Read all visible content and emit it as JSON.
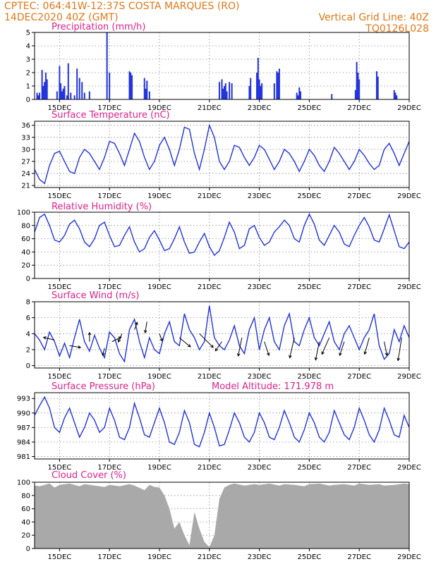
{
  "header": {
    "station": "CPTEC:  064:41W-12:37S  COSTA MARQUES (RO)",
    "run": "14DEC2020 40Z (GMT)",
    "grid_note": "Vertical Grid Line: 40Z",
    "code": "TQ0126L028"
  },
  "colors": {
    "header": "#e07818",
    "panel_title": "#e0208a",
    "series": "#2233dd",
    "cloud": "#a9a9a9",
    "wind_arrow": "#000000"
  },
  "x_axis": {
    "tick_labels": [
      "15DEC",
      "17DEC",
      "19DEC",
      "21DEC",
      "23DEC",
      "25DEC",
      "27DEC",
      "29DEC"
    ],
    "tick_days": [
      15,
      17,
      19,
      21,
      23,
      25,
      27,
      29
    ],
    "range": [
      14.0,
      29.0
    ]
  },
  "chart_data": [
    {
      "id": "precip",
      "type": "bar",
      "title": "Precipitation (mm/h)",
      "ylim": [
        0,
        5
      ],
      "yticks": [
        0,
        1,
        2,
        3,
        4,
        5
      ],
      "x": [
        14.1,
        14.15,
        14.2,
        14.3,
        14.35,
        14.4,
        14.45,
        14.5,
        14.9,
        15.0,
        15.05,
        15.1,
        15.15,
        15.2,
        15.3,
        15.35,
        15.45,
        15.6,
        15.7,
        15.8,
        15.9,
        16.0,
        16.2,
        16.9,
        17.0,
        17.8,
        17.85,
        17.9,
        18.4,
        18.45,
        18.5,
        18.6,
        21.4,
        21.5,
        21.55,
        21.6,
        21.65,
        21.7,
        21.8,
        21.9,
        22.6,
        22.65,
        22.9,
        22.95,
        23.0,
        23.05,
        23.1,
        23.6,
        23.7,
        23.75,
        23.8,
        24.5,
        24.55,
        24.6,
        24.65,
        25.9,
        26.85,
        26.9,
        26.95,
        27.0,
        27.7,
        27.75,
        28.4,
        28.45,
        28.5
      ],
      "values": [
        0.5,
        0.3,
        0.5,
        2.2,
        1.0,
        1.3,
        2.0,
        1.5,
        0.6,
        2.5,
        1.2,
        0.6,
        0.8,
        1.0,
        0.3,
        2.7,
        0.5,
        0.3,
        2.3,
        1.6,
        1.3,
        0.5,
        0.6,
        5.0,
        2.0,
        2.1,
        2.0,
        1.8,
        1.6,
        0.8,
        1.4,
        0.6,
        1.3,
        1.5,
        0.8,
        1.0,
        1.2,
        0.6,
        1.3,
        1.2,
        1.0,
        1.6,
        2.0,
        3.1,
        1.5,
        1.0,
        1.2,
        1.2,
        2.1,
        2.0,
        2.3,
        0.5,
        0.3,
        0.9,
        0.6,
        0.4,
        0.7,
        2.8,
        2.0,
        1.5,
        2.1,
        1.7,
        0.7,
        0.5,
        0.3
      ]
    },
    {
      "id": "temperature",
      "type": "line",
      "title": "Surface Temperature (nC)",
      "ylim": [
        20.5,
        37
      ],
      "yticks": [
        21,
        24,
        27,
        30,
        33,
        36
      ],
      "x": [
        14.0,
        14.2,
        14.4,
        14.6,
        14.8,
        15.0,
        15.2,
        15.4,
        15.6,
        15.8,
        16.0,
        16.2,
        16.4,
        16.6,
        16.8,
        17.0,
        17.2,
        17.4,
        17.6,
        17.8,
        18.0,
        18.2,
        18.4,
        18.6,
        18.8,
        19.0,
        19.2,
        19.4,
        19.6,
        19.8,
        20.0,
        20.2,
        20.4,
        20.6,
        20.8,
        21.0,
        21.2,
        21.4,
        21.6,
        21.8,
        22.0,
        22.2,
        22.4,
        22.6,
        22.8,
        23.0,
        23.2,
        23.4,
        23.6,
        23.8,
        24.0,
        24.2,
        24.4,
        24.6,
        24.8,
        25.0,
        25.2,
        25.4,
        25.6,
        25.8,
        26.0,
        26.2,
        26.4,
        26.6,
        26.8,
        27.0,
        27.2,
        27.4,
        27.6,
        27.8,
        28.0,
        28.2,
        28.4,
        28.6,
        28.8,
        29.0
      ],
      "values": [
        25,
        22.5,
        21.5,
        26,
        29,
        29.5,
        27,
        24.5,
        24,
        28,
        30,
        29,
        27,
        25,
        28,
        32,
        31.5,
        29,
        26,
        30,
        34,
        32,
        28,
        25,
        27,
        31,
        33,
        30,
        26,
        30,
        35.5,
        35,
        29,
        25,
        30,
        36,
        33,
        27,
        25,
        27,
        31,
        30.5,
        28,
        26,
        28,
        31,
        30,
        27.5,
        25,
        27,
        30,
        29,
        27,
        24.5,
        27,
        30,
        28.5,
        26,
        24.5,
        27,
        30.5,
        29,
        27,
        25,
        27,
        30,
        28.5,
        26.5,
        25,
        26,
        30,
        31.5,
        29,
        26,
        29,
        32
      ]
    },
    {
      "id": "humidity",
      "type": "line",
      "title": "Relative Humidity (%)",
      "ylim": [
        0,
        100
      ],
      "yticks": [
        0,
        20,
        40,
        60,
        80,
        100
      ],
      "x": [
        14.0,
        14.2,
        14.4,
        14.6,
        14.8,
        15.0,
        15.2,
        15.4,
        15.6,
        15.8,
        16.0,
        16.2,
        16.4,
        16.6,
        16.8,
        17.0,
        17.2,
        17.4,
        17.6,
        17.8,
        18.0,
        18.2,
        18.4,
        18.6,
        18.8,
        19.0,
        19.2,
        19.4,
        19.6,
        19.8,
        20.0,
        20.2,
        20.4,
        20.6,
        20.8,
        21.0,
        21.2,
        21.4,
        21.6,
        21.8,
        22.0,
        22.2,
        22.4,
        22.6,
        22.8,
        23.0,
        23.2,
        23.4,
        23.6,
        23.8,
        24.0,
        24.2,
        24.4,
        24.6,
        24.8,
        25.0,
        25.2,
        25.4,
        25.6,
        25.8,
        26.0,
        26.2,
        26.4,
        26.6,
        26.8,
        27.0,
        27.2,
        27.4,
        27.6,
        27.8,
        28.0,
        28.2,
        28.4,
        28.6,
        28.8,
        29.0
      ],
      "values": [
        70,
        92,
        97,
        80,
        58,
        55,
        65,
        82,
        88,
        75,
        55,
        48,
        60,
        80,
        85,
        65,
        48,
        50,
        65,
        78,
        55,
        40,
        45,
        62,
        72,
        58,
        42,
        45,
        60,
        78,
        55,
        38,
        40,
        55,
        68,
        48,
        35,
        42,
        62,
        85,
        70,
        45,
        50,
        75,
        80,
        62,
        50,
        55,
        70,
        78,
        88,
        80,
        60,
        55,
        80,
        97,
        82,
        58,
        50,
        65,
        80,
        70,
        52,
        48,
        65,
        80,
        92,
        78,
        58,
        55,
        75,
        96,
        72,
        48,
        45,
        55
      ]
    },
    {
      "id": "wind",
      "type": "line",
      "title": "Surface Wind (m/s)",
      "ylim": [
        -0.3,
        8
      ],
      "yticks": [
        0,
        2,
        4,
        6,
        8
      ],
      "x": [
        14.0,
        14.2,
        14.4,
        14.6,
        14.8,
        15.0,
        15.2,
        15.4,
        15.6,
        15.8,
        16.0,
        16.2,
        16.4,
        16.6,
        16.8,
        17.0,
        17.2,
        17.4,
        17.6,
        17.8,
        18.0,
        18.2,
        18.4,
        18.6,
        18.8,
        19.0,
        19.2,
        19.4,
        19.6,
        19.8,
        20.0,
        20.2,
        20.4,
        20.6,
        20.8,
        21.0,
        21.2,
        21.4,
        21.6,
        21.8,
        22.0,
        22.2,
        22.4,
        22.6,
        22.8,
        23.0,
        23.2,
        23.4,
        23.6,
        23.8,
        24.0,
        24.2,
        24.4,
        24.6,
        24.8,
        25.0,
        25.2,
        25.4,
        25.6,
        25.8,
        26.0,
        26.2,
        26.4,
        26.6,
        26.8,
        27.0,
        27.2,
        27.4,
        27.6,
        27.8,
        28.0,
        28.2,
        28.4,
        28.6,
        28.8,
        29.0
      ],
      "values": [
        4.0,
        3.2,
        2.0,
        4.2,
        3.0,
        1.2,
        2.8,
        1.0,
        3.5,
        5.8,
        3.0,
        1.8,
        3.8,
        2.2,
        1.0,
        4.2,
        3.5,
        1.5,
        0.5,
        4.5,
        5.8,
        3.0,
        1.0,
        3.5,
        2.0,
        1.5,
        4.0,
        5.5,
        3.0,
        2.5,
        6.5,
        4.5,
        3.5,
        2.0,
        3.0,
        7.5,
        3.5,
        2.5,
        2.0,
        3.2,
        5.0,
        2.5,
        1.5,
        4.5,
        6.0,
        2.0,
        4.5,
        6.0,
        3.0,
        2.0,
        5.0,
        6.5,
        3.0,
        2.5,
        4.5,
        6.0,
        3.5,
        2.5,
        4.0,
        5.5,
        3.0,
        2.0,
        4.0,
        5.0,
        3.5,
        2.0,
        3.5,
        4.5,
        6.5,
        2.5,
        0.8,
        1.5,
        4.5,
        3.0,
        5.0,
        3.5
      ],
      "wind_barbs": [
        {
          "x": 14.8,
          "y": 3.2,
          "u": -1.2,
          "v": 0.3
        },
        {
          "x": 15.4,
          "y": 2.5,
          "u": 1.2,
          "v": -0.2
        },
        {
          "x": 16.2,
          "y": 3.0,
          "u": 0.0,
          "v": 1.0
        },
        {
          "x": 16.8,
          "y": 2.2,
          "u": -0.2,
          "v": -0.8
        },
        {
          "x": 17.1,
          "y": 3.0,
          "u": 1.0,
          "v": 0.5
        },
        {
          "x": 17.5,
          "y": 4.0,
          "u": -0.4,
          "v": -0.9
        },
        {
          "x": 18.0,
          "y": 4.5,
          "u": 0.3,
          "v": 0.8
        },
        {
          "x": 18.5,
          "y": 5.5,
          "u": -0.2,
          "v": -1.2
        },
        {
          "x": 19.0,
          "y": 4.0,
          "u": 0.3,
          "v": -0.8
        },
        {
          "x": 19.8,
          "y": 3.5,
          "u": 1.2,
          "v": -1.0
        },
        {
          "x": 20.6,
          "y": 4.0,
          "u": 1.5,
          "v": -1.5
        },
        {
          "x": 21.5,
          "y": 3.0,
          "u": -0.7,
          "v": -1.0
        },
        {
          "x": 22.3,
          "y": 3.5,
          "u": -0.4,
          "v": -2.0
        },
        {
          "x": 23.2,
          "y": 3.0,
          "u": 0.5,
          "v": -1.5
        },
        {
          "x": 24.4,
          "y": 3.5,
          "u": -0.5,
          "v": -2.2
        },
        {
          "x": 25.4,
          "y": 3.0,
          "u": -0.4,
          "v": -2.0
        },
        {
          "x": 25.8,
          "y": 3.5,
          "u": -0.8,
          "v": -1.8
        },
        {
          "x": 26.4,
          "y": 3.0,
          "u": -0.5,
          "v": -1.5
        },
        {
          "x": 27.4,
          "y": 3.5,
          "u": -0.5,
          "v": -1.8
        },
        {
          "x": 28.0,
          "y": 3.0,
          "u": 0.3,
          "v": -1.5
        },
        {
          "x": 28.7,
          "y": 3.5,
          "u": -0.4,
          "v": -2.5
        }
      ]
    },
    {
      "id": "pressure",
      "type": "line",
      "title": "Surface Pressure (hPa)",
      "annotation": "Model Altitude: 171.978 m",
      "ylim": [
        980.5,
        994.2
      ],
      "yticks": [
        981,
        984,
        987,
        990,
        993
      ],
      "x": [
        14.0,
        14.2,
        14.4,
        14.6,
        14.8,
        15.0,
        15.2,
        15.4,
        15.6,
        15.8,
        16.0,
        16.2,
        16.4,
        16.6,
        16.8,
        17.0,
        17.2,
        17.4,
        17.6,
        17.8,
        18.0,
        18.2,
        18.4,
        18.6,
        18.8,
        19.0,
        19.2,
        19.4,
        19.6,
        19.8,
        20.0,
        20.2,
        20.4,
        20.6,
        20.8,
        21.0,
        21.2,
        21.4,
        21.6,
        21.8,
        22.0,
        22.2,
        22.4,
        22.6,
        22.8,
        23.0,
        23.2,
        23.4,
        23.6,
        23.8,
        24.0,
        24.2,
        24.4,
        24.6,
        24.8,
        25.0,
        25.2,
        25.4,
        25.6,
        25.8,
        26.0,
        26.2,
        26.4,
        26.6,
        26.8,
        27.0,
        27.2,
        27.4,
        27.6,
        27.8,
        28.0,
        28.2,
        28.4,
        28.6,
        28.8,
        29.0
      ],
      "values": [
        989.5,
        991.5,
        993.3,
        991,
        987,
        986,
        989,
        991,
        988,
        985,
        987,
        990,
        988.5,
        986,
        987,
        991,
        988.5,
        985,
        984.5,
        987,
        992,
        989,
        985.5,
        985,
        988,
        991,
        988,
        984,
        983.5,
        986,
        990.5,
        988,
        983.5,
        983,
        986,
        990,
        987,
        983.2,
        983.5,
        986.5,
        990,
        988,
        985,
        984,
        986,
        990,
        988,
        985,
        984.5,
        987,
        990.5,
        988,
        985,
        984,
        986.5,
        990,
        988,
        985,
        984,
        986,
        990.5,
        988,
        985.5,
        984.5,
        987,
        991,
        988.5,
        985.5,
        984,
        986.5,
        991,
        988.5,
        985.5,
        985,
        989.5,
        987
      ]
    },
    {
      "id": "cloud",
      "type": "area",
      "title": "Cloud Cover (%)",
      "ylim": [
        0,
        100
      ],
      "yticks": [
        0,
        20,
        40,
        60,
        80,
        100
      ],
      "x": [
        14.0,
        14.2,
        14.4,
        14.6,
        14.8,
        15.0,
        15.4,
        15.8,
        16.0,
        16.4,
        16.8,
        17.0,
        17.4,
        17.8,
        18.0,
        18.4,
        18.6,
        18.8,
        19.0,
        19.2,
        19.4,
        19.6,
        19.8,
        20.0,
        20.2,
        20.4,
        20.6,
        20.8,
        21.0,
        21.2,
        21.4,
        21.6,
        21.8,
        22.0,
        22.4,
        22.8,
        23.0,
        23.4,
        23.8,
        24.0,
        24.4,
        24.8,
        25.0,
        25.4,
        25.8,
        26.0,
        26.4,
        26.8,
        27.0,
        27.4,
        27.8,
        28.0,
        28.4,
        28.8,
        29.0
      ],
      "values": [
        95,
        94,
        96,
        98,
        92,
        96,
        98,
        94,
        97,
        95,
        93,
        96,
        94,
        97,
        95,
        88,
        96,
        93,
        92,
        80,
        60,
        30,
        40,
        20,
        5,
        55,
        30,
        10,
        2,
        20,
        75,
        92,
        96,
        98,
        95,
        97,
        96,
        98,
        95,
        97,
        96,
        94,
        97,
        98,
        95,
        96,
        97,
        95,
        98,
        96,
        97,
        95,
        96,
        98,
        97
      ]
    }
  ]
}
